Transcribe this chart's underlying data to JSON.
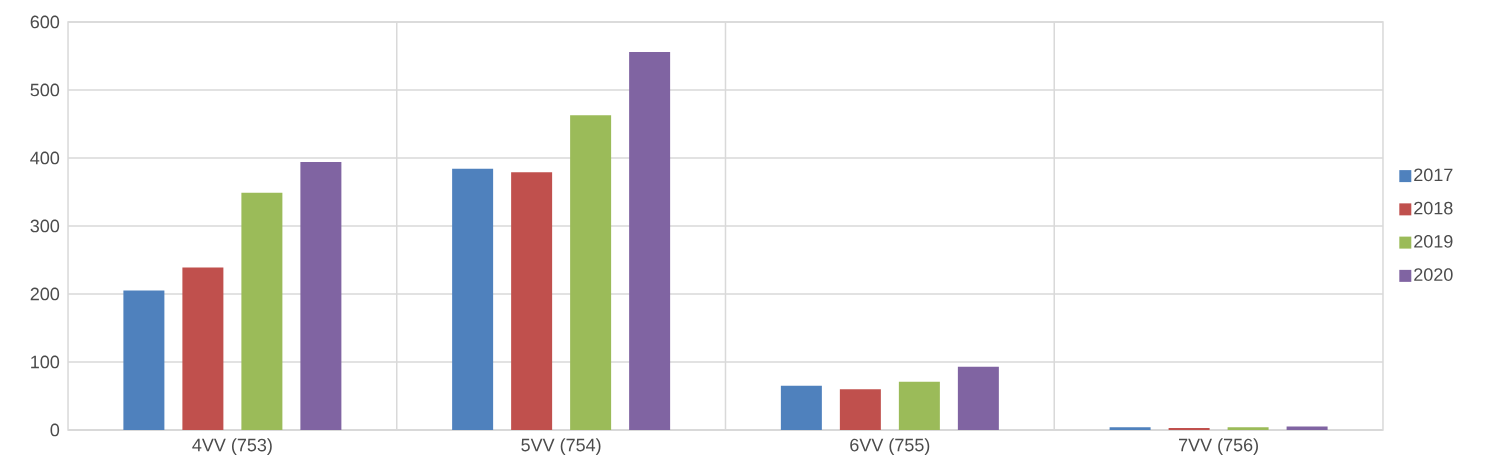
{
  "chart_data": {
    "type": "bar",
    "categories": [
      "4VV (753)",
      "5VV (754)",
      "6VV (755)",
      "7VV (756)"
    ],
    "series": [
      {
        "name": "2017",
        "color": "#4f81bd",
        "values": [
          205,
          384,
          65,
          4
        ]
      },
      {
        "name": "2018",
        "color": "#c0504d",
        "values": [
          239,
          379,
          60,
          3
        ]
      },
      {
        "name": "2019",
        "color": "#9bbb59",
        "values": [
          349,
          463,
          71,
          4
        ]
      },
      {
        "name": "2020",
        "color": "#8064a2",
        "values": [
          394,
          556,
          93,
          5
        ]
      }
    ],
    "ylim": [
      0,
      600
    ],
    "yticks": [
      0,
      100,
      200,
      300,
      400,
      500,
      600
    ],
    "grid": true,
    "legend": "right"
  }
}
